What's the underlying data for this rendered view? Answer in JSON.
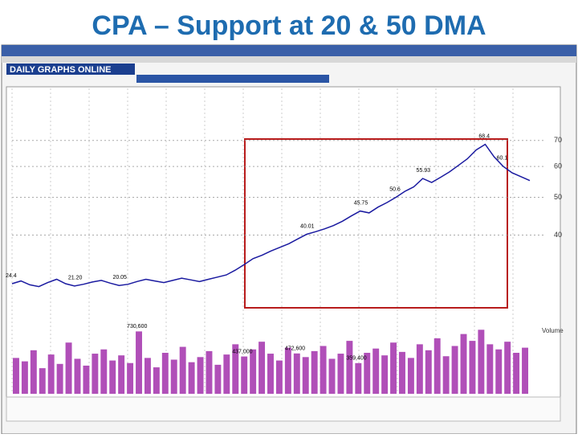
{
  "slide_title": "CPA – Support at 20 & 50 DMA",
  "logo": "DAILY GRAPHS ONLINE",
  "chart_data": [
    {
      "type": "line",
      "log": true,
      "color": "#1a1aa0",
      "values": [
        30,
        30.5,
        29.8,
        29.5,
        30.2,
        30.8,
        30,
        29.6,
        29.9,
        30.3,
        30.6,
        30.1,
        29.7,
        29.9,
        30.4,
        30.8,
        30.5,
        30.2,
        30.6,
        31,
        30.7,
        30.4,
        30.8,
        31.2,
        31.6,
        32.5,
        33.6,
        34.8,
        35.5,
        36.4,
        37.2,
        38,
        39.1,
        40.2,
        40.8,
        41.5,
        42.3,
        43.4,
        44.8,
        46.1,
        45.6,
        47.2,
        48.5,
        50,
        51.8,
        53.2,
        55.9,
        54.6,
        56.3,
        58.1,
        60.4,
        62.8,
        66.2,
        68.4,
        63.5,
        60.1,
        57.8,
        56.5,
        55.2
      ],
      "ylim": [
        24,
        97.5
      ],
      "yticks": [
        40,
        50,
        60,
        70
      ],
      "grid": true,
      "annotations": [
        "55.93",
        "68.4",
        "60.1",
        "50.6",
        "45.75",
        "40.01",
        "24.4",
        "21.20",
        "20.05"
      ]
    },
    {
      "type": "bar",
      "color": "#b04fb8",
      "label": "Volume",
      "values": [
        420000,
        380000,
        510000,
        300000,
        460000,
        350000,
        600000,
        410000,
        330000,
        470000,
        520000,
        390000,
        450000,
        360000,
        730600,
        420000,
        310000,
        480000,
        400000,
        550000,
        370000,
        430000,
        500000,
        340000,
        460000,
        580000,
        437000,
        520000,
        610000,
        470000,
        390000,
        540000,
        472600,
        430000,
        500000,
        560000,
        410000,
        470000,
        620000,
        359400,
        480000,
        530000,
        450000,
        600000,
        490600,
        420000,
        580000,
        510000,
        650000,
        440000,
        560000,
        700000,
        620000,
        750000,
        580000,
        520000,
        610000,
        480000,
        540000
      ],
      "ylim": [
        0,
        800000
      ],
      "annotations": [
        "730,600",
        "437,000",
        "472,600",
        "359,400"
      ]
    }
  ]
}
